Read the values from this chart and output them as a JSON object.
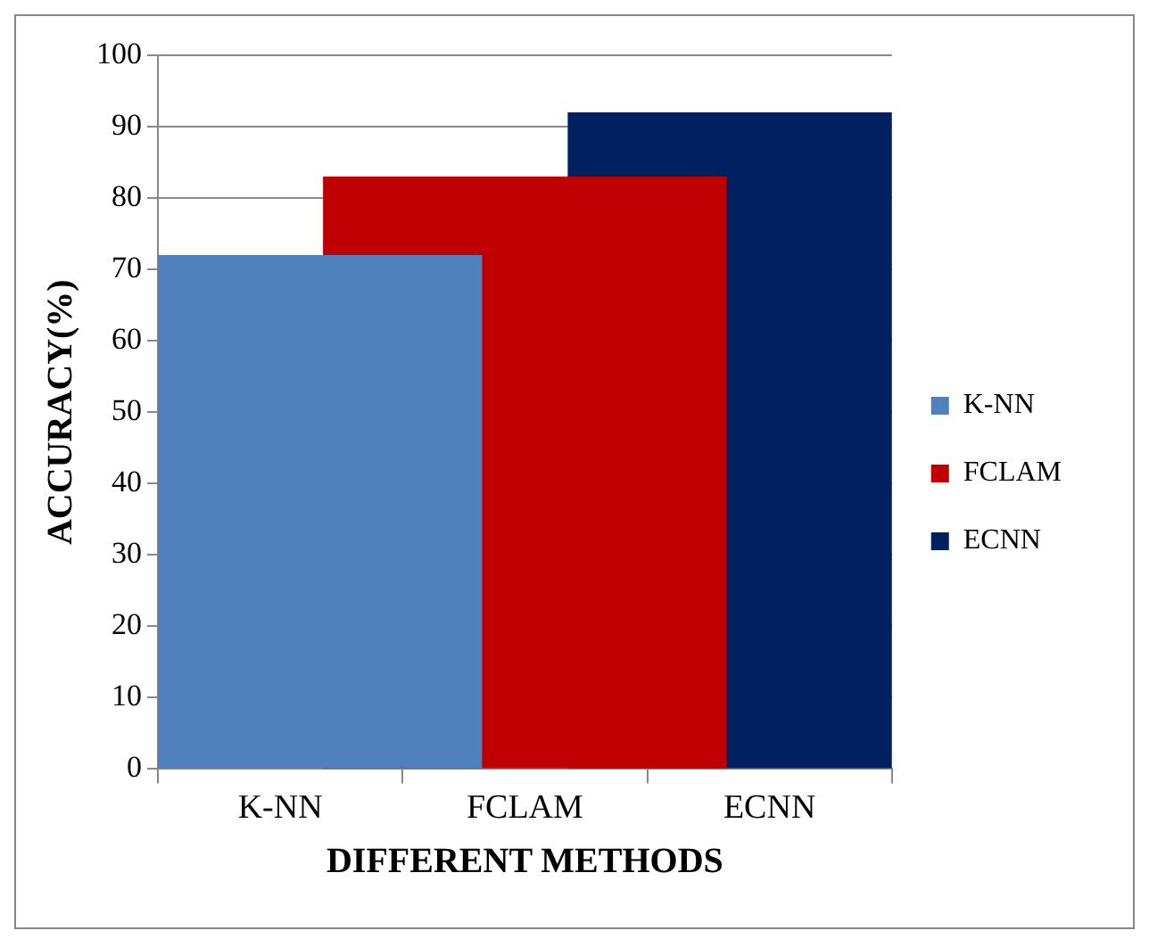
{
  "chart_data": {
    "type": "bar",
    "xlabel": "DIFFERENT METHODS",
    "ylabel": "ACCURACY(%)",
    "categories": [
      "K-NN",
      "FCLAM",
      "ECNN"
    ],
    "series": [
      {
        "name": "K-NN",
        "color": "#4f81bd",
        "values": [
          72,
          null,
          null
        ]
      },
      {
        "name": "FCLAM",
        "color": "#c00000",
        "values": [
          null,
          83,
          null
        ]
      },
      {
        "name": "ECNN",
        "color": "#002060",
        "values": [
          null,
          null,
          92
        ]
      }
    ],
    "ylim": [
      0,
      100
    ],
    "yticks": [
      0,
      10,
      20,
      30,
      40,
      50,
      60,
      70,
      80,
      90,
      100
    ],
    "grid": "y",
    "legend": "right"
  }
}
